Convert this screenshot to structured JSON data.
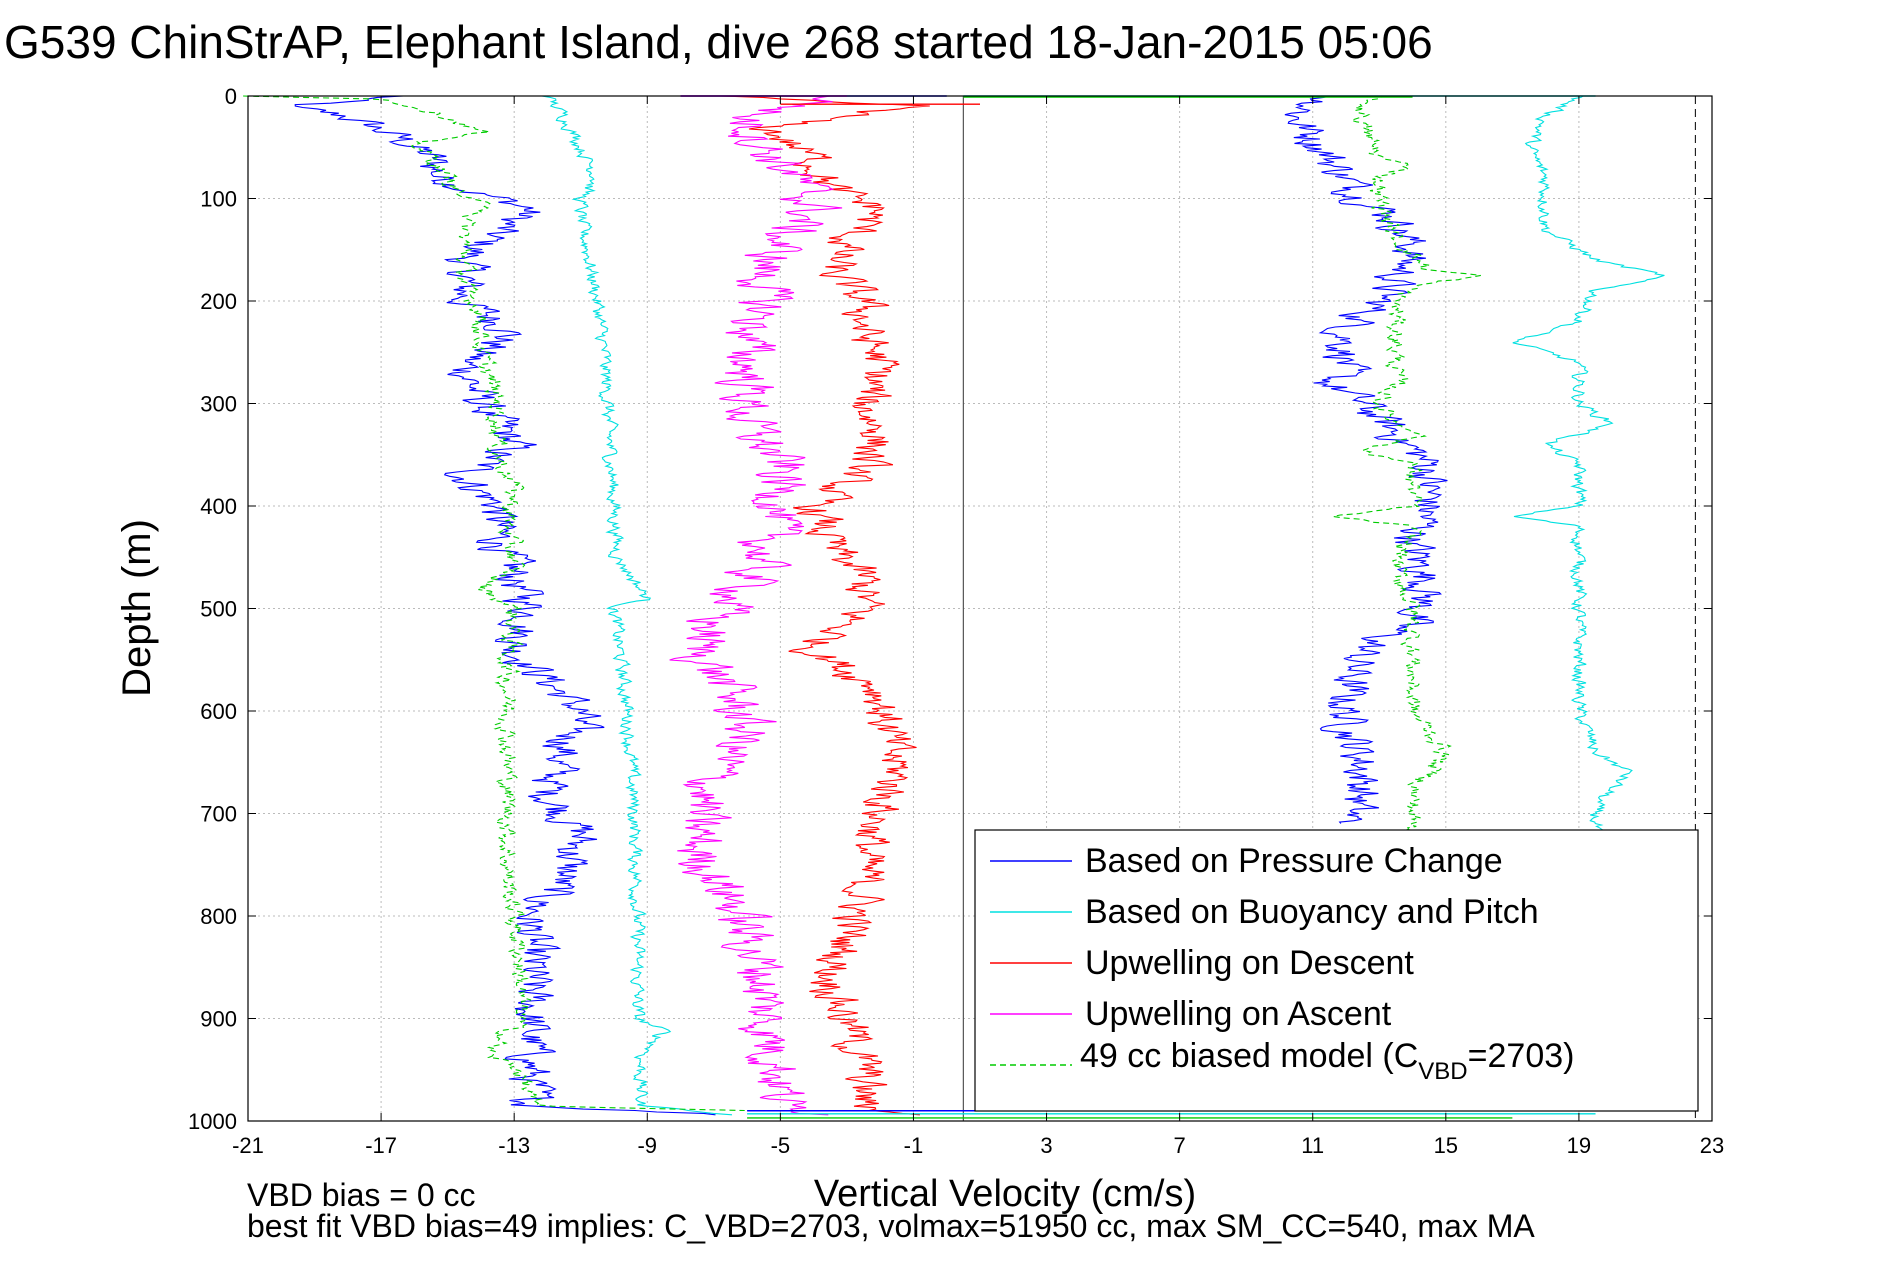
{
  "chart_data": {
    "type": "line",
    "title": "G539 ChinStrAP, Elephant Island, dive 268 started 18-Jan-2015 05:06",
    "xlabel": "Vertical Velocity (cm/s)",
    "ylabel": "Depth (m)",
    "xlim": [
      -21,
      23
    ],
    "ylim": [
      0,
      1000
    ],
    "y_reversed": true,
    "grid": true,
    "legend_position": "bottom-right",
    "x_ticks": [
      "-21",
      "-17",
      "-13",
      "-9",
      "-5",
      "-1",
      "3",
      "7",
      "11",
      "15",
      "19",
      "23"
    ],
    "y_ticks": [
      "0",
      "100",
      "200",
      "300",
      "400",
      "500",
      "600",
      "700",
      "800",
      "900",
      "1000"
    ],
    "legend_labels": {
      "pressure": "Based on Pressure Change",
      "buoyancy": "Based on Buoyancy and Pitch",
      "up_descent": "Upwelling on Descent",
      "up_ascent": "Upwelling on Ascent",
      "model_prefix": "49 cc biased model (C",
      "model_sub": "VBD",
      "model_suffix": "=2703)"
    },
    "footer_line1": "VBD bias = 0 cc",
    "footer_line2": "best fit VBD bias=49 implies: C_VBD=2703, volmax=51950 cc, max SM_CC=540, max MA",
    "vertical_divider_x": 0.5,
    "vertical_dashed_x": 22.5,
    "series": [
      {
        "name": "Based on Pressure Change",
        "color": "#0000ff",
        "dash": "",
        "noise": 0.55,
        "segments": [
          {
            "depth": [
              0,
              10,
              20,
              40,
              60,
              80,
              95,
              110,
              130,
              160,
              200,
              230,
              260,
              300,
              340,
              370,
              400,
              430,
              470,
              500,
              540,
              570,
              600,
              640,
              680,
              720,
              760,
              800,
              850,
              900,
              950,
              985,
              995
            ],
            "value": [
              -16.5,
              -20,
              -18,
              -16.5,
              -15.5,
              -15.2,
              -14,
              -12.5,
              -13.5,
              -14.5,
              -14.5,
              -13,
              -14.5,
              -14,
              -13,
              -14.5,
              -13.5,
              -13.5,
              -13,
              -12.5,
              -13,
              -12,
              -11,
              -11.5,
              -12,
              -11,
              -11.5,
              -12.5,
              -12.5,
              -12.5,
              -12.5,
              -12.5,
              -6
            ]
          },
          {
            "depth": [
              0,
              20,
              40,
              60,
              80,
              100,
              120,
              150,
              180,
              200,
              230,
              260,
              280,
              300,
              330,
              360,
              400,
              440,
              480,
              510,
              540,
              580,
              610,
              650,
              680,
              710
            ],
            "value": [
              11.5,
              10.5,
              11,
              11.5,
              12,
              12.5,
              13.5,
              14,
              13.5,
              13,
              12,
              12,
              11.5,
              12.5,
              13.5,
              14.5,
              14.5,
              14,
              14.5,
              14,
              12.5,
              12,
              12,
              12.5,
              12.5,
              12
            ]
          }
        ]
      },
      {
        "name": "Based on Buoyancy and Pitch",
        "color": "#00e0e0",
        "dash": "",
        "noise": 0.18,
        "segments": [
          {
            "depth": [
              0,
              20,
              50,
              80,
              100,
              120,
              150,
              200,
              250,
              300,
              350,
              400,
              450,
              490,
              500,
              550,
              600,
              700,
              800,
              900,
              912,
              940,
              985,
              995
            ],
            "value": [
              -12,
              -11.5,
              -11,
              -10.5,
              -11,
              -11,
              -10.8,
              -10.5,
              -10.3,
              -10.2,
              -10.1,
              -10,
              -9.9,
              -9,
              -10,
              -9.8,
              -9.6,
              -9.4,
              -9.3,
              -9.3,
              -8.5,
              -9.2,
              -9.2,
              -6
            ]
          },
          {
            "depth": [
              0,
              20,
              50,
              80,
              100,
              130,
              160,
              175,
              190,
              220,
              240,
              260,
              300,
              320,
              340,
              360,
              400,
              410,
              420,
              460,
              500,
              600,
              640,
              660,
              690,
              720
            ],
            "value": [
              19,
              18,
              17.5,
              18,
              18,
              18,
              19.5,
              21.5,
              19.5,
              19,
              17,
              19,
              19,
              20,
              18,
              19,
              19,
              17,
              19,
              19,
              19,
              19,
              19.5,
              20.5,
              19.5,
              19.5
            ]
          }
        ]
      },
      {
        "name": "Upwelling on Descent",
        "color": "#ff0000",
        "dash": "",
        "noise": 0.55,
        "segments": [
          {
            "depth": [
              0,
              10,
              30,
              60,
              90,
              110,
              140,
              170,
              200,
              230,
              260,
              300,
              330,
              360,
              400,
              440,
              470,
              500,
              540,
              580,
              620,
              660,
              700,
              740,
              780,
              820,
              860,
              900,
              950,
              985,
              995
            ],
            "value": [
              -7,
              -1,
              -5.5,
              -4,
              -3.5,
              -2,
              -3,
              -3.5,
              -2.5,
              -2.5,
              -2,
              -2.5,
              -2,
              -2.5,
              -4,
              -3.5,
              -2.5,
              -2.5,
              -4,
              -2,
              -1.8,
              -1.5,
              -2,
              -2.5,
              -2.5,
              -3,
              -3.5,
              -3,
              -2.5,
              -2.5,
              -1
            ]
          }
        ]
      },
      {
        "name": "Upwelling on Ascent",
        "color": "#ff00ff",
        "dash": "",
        "noise": 0.7,
        "segments": [
          {
            "depth": [
              0,
              20,
              50,
              80,
              110,
              140,
              170,
              200,
              240,
              280,
              320,
              360,
              400,
              440,
              480,
              510,
              540,
              580,
              620,
              660,
              700,
              740,
              780,
              820,
              860,
              900,
              950,
              985,
              995
            ],
            "value": [
              -3,
              -6,
              -5.5,
              -4.5,
              -4,
              -5,
              -5.5,
              -5.5,
              -6,
              -6,
              -6,
              -5,
              -5,
              -5.5,
              -6,
              -7,
              -7.5,
              -6.5,
              -6,
              -7,
              -7.5,
              -7.5,
              -6.5,
              -6,
              -5.5,
              -5.5,
              -5,
              -5,
              -3
            ]
          }
        ]
      },
      {
        "name": "49 cc biased model",
        "color": "#00cc00",
        "dash": "6 4",
        "noise": 0.25,
        "segments": [
          {
            "depth": [
              0,
              3,
              10,
              20,
              35,
              45,
              60,
              80,
              100,
              110,
              120,
              150,
              190,
              210,
              250,
              300,
              350,
              380,
              420,
              460,
              480,
              500,
              550,
              600,
              640,
              700,
              760,
              800,
              850,
              900,
              935,
              950,
              985,
              990
            ],
            "value": [
              -21,
              -17,
              -16,
              -15,
              -14,
              -16,
              -15.5,
              -15,
              -14.5,
              -13.5,
              -14.5,
              -14.5,
              -14.5,
              -14,
              -14,
              -13.5,
              -13.5,
              -13,
              -13.2,
              -13,
              -14,
              -13,
              -13.2,
              -13.2,
              -13.2,
              -13.2,
              -13.2,
              -13,
              -12.8,
              -12.8,
              -13.8,
              -12.8,
              -12.5,
              -6
            ]
          },
          {
            "depth": [
              0,
              10,
              30,
              60,
              70,
              80,
              100,
              140,
              170,
              175,
              185,
              200,
              240,
              280,
              300,
              320,
              330,
              345,
              360,
              400,
              410,
              420,
              460,
              500,
              560,
              600,
              640,
              660,
              680,
              700,
              720
            ],
            "value": [
              13,
              12.5,
              12.5,
              13,
              14,
              13,
              13,
              13.5,
              14.5,
              16,
              14,
              13.5,
              13.5,
              13.5,
              13,
              13.5,
              14.5,
              12.5,
              14,
              14,
              11.5,
              14,
              13.5,
              14,
              14,
              14,
              15,
              14.5,
              14,
              14,
              14
            ]
          }
        ]
      }
    ],
    "spikes": [
      {
        "name": "Based on Pressure Change",
        "color": "#0000ff",
        "depth": 990,
        "value": [
          -6,
          20
        ]
      },
      {
        "name": "Based on Buoyancy and Pitch",
        "color": "#00e0e0",
        "depth": 993,
        "value": [
          -6,
          19.5
        ]
      },
      {
        "name": "49 cc biased model",
        "color": "#00cc00",
        "depth": 997,
        "value": [
          -6,
          17
        ]
      },
      {
        "name": "Based on Pressure Change",
        "color": "#0000ff",
        "depth": 0,
        "value": [
          -8,
          0
        ]
      },
      {
        "name": "Based on Buoyancy and Pitch",
        "color": "#00e0e0",
        "depth": 0,
        "value": [
          0.5,
          19.5
        ]
      },
      {
        "name": "49 cc biased model",
        "color": "#00cc00",
        "depth": 1,
        "value": [
          0.5,
          14
        ]
      },
      {
        "name": "Upwelling on Descent",
        "color": "#ff0000",
        "depth": 8,
        "value": [
          -5,
          1
        ]
      },
      {
        "name": "Upwelling on Ascent",
        "color": "#ff00ff",
        "depth": 0,
        "value": [
          -8,
          -3
        ]
      }
    ]
  }
}
